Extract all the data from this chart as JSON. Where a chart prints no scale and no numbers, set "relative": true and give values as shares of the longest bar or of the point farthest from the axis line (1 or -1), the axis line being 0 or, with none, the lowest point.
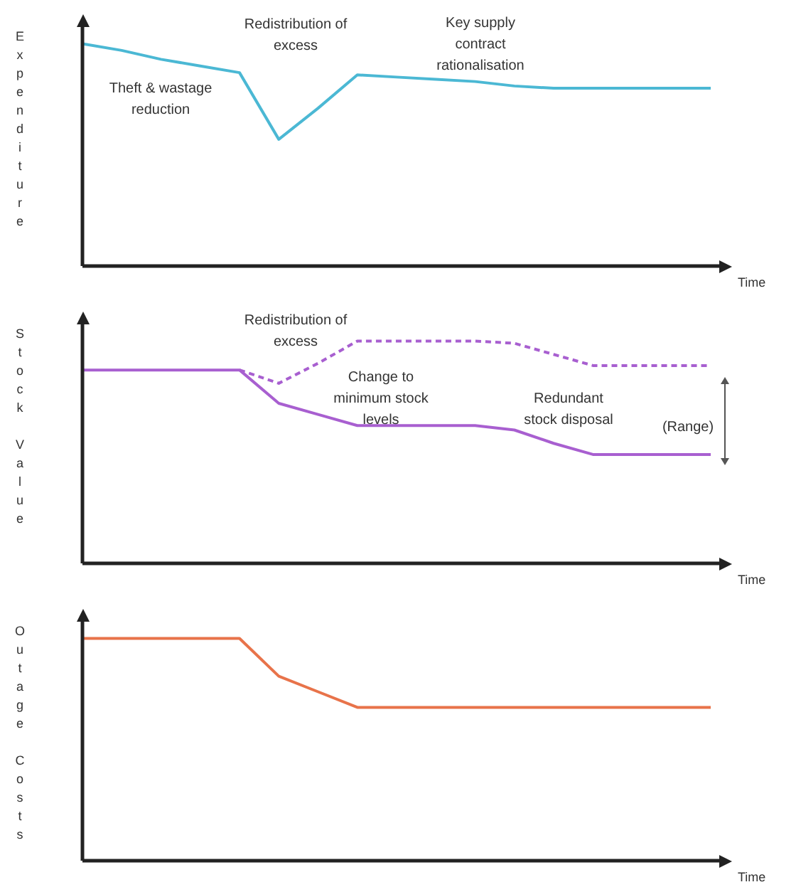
{
  "chart_data": [
    {
      "type": "line",
      "relative": true,
      "tick_labels": false,
      "marker": "none",
      "xlabel": "Time",
      "ylabel": "Expenditure",
      "categories": [
        null,
        null,
        null,
        null,
        null,
        null,
        null,
        null,
        null,
        null,
        null,
        null,
        null,
        null,
        null,
        null,
        null
      ],
      "series": [
        {
          "color": "#4bb8d4",
          "line_style": "solid",
          "values": [
            1.0,
            0.97,
            0.93,
            0.9,
            0.87,
            0.57,
            0.71,
            0.86,
            0.85,
            0.84,
            0.83,
            0.81,
            0.8,
            0.8,
            0.8,
            0.8,
            0.8
          ]
        }
      ],
      "annotations": [
        "Theft & wastage reduction",
        "Redistribution of excess",
        "Key supply contract rationalisation"
      ]
    },
    {
      "type": "line",
      "relative": true,
      "tick_labels": false,
      "marker": "none",
      "xlabel": "Time",
      "ylabel": "Stock Value",
      "categories": [
        null,
        null,
        null,
        null,
        null,
        null,
        null,
        null,
        null,
        null,
        null,
        null,
        null,
        null,
        null,
        null,
        null
      ],
      "series": [
        {
          "color": "#a85fd0",
          "line_style": "solid",
          "values": [
            0.87,
            0.87,
            0.87,
            0.87,
            0.87,
            0.72,
            0.67,
            0.62,
            0.62,
            0.62,
            0.62,
            0.6,
            0.54,
            0.49,
            0.49,
            0.49,
            0.49
          ]
        },
        {
          "color": "#a85fd0",
          "line_style": "dashed",
          "values": [
            null,
            null,
            null,
            null,
            0.87,
            0.81,
            0.9,
            1.0,
            1.0,
            1.0,
            1.0,
            0.99,
            0.94,
            0.89,
            0.89,
            0.89,
            0.89
          ]
        }
      ],
      "annotations": [
        "Redistribution of excess",
        "Change to minimum stock levels",
        "Redundant stock disposal",
        "(Range)"
      ]
    },
    {
      "type": "line",
      "relative": true,
      "tick_labels": false,
      "marker": "none",
      "xlabel": "Time",
      "ylabel": "Outage Costs",
      "categories": [
        null,
        null,
        null,
        null,
        null,
        null,
        null,
        null,
        null,
        null,
        null,
        null,
        null,
        null,
        null,
        null,
        null
      ],
      "series": [
        {
          "color": "#e8734a",
          "line_style": "solid",
          "values": [
            1.0,
            1.0,
            1.0,
            1.0,
            1.0,
            0.83,
            0.76,
            0.69,
            0.69,
            0.69,
            0.69,
            0.69,
            0.69,
            0.69,
            0.69,
            0.69,
            0.69
          ]
        }
      ]
    }
  ]
}
